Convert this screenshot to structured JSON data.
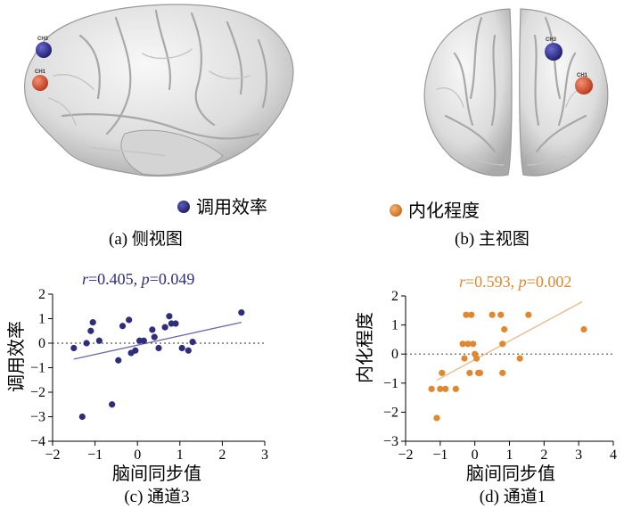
{
  "colors": {
    "efficiency": "#2e2e7a",
    "internalization": "#e0882f",
    "ch_blue": "#2b2a8a",
    "ch_red": "#d8502e"
  },
  "legend": {
    "efficiency": "调用效率",
    "internalization": "内化程度"
  },
  "brains": {
    "side": {
      "caption": "(a) 侧视图",
      "channels": [
        "CH3",
        "CH1"
      ]
    },
    "front": {
      "caption": "(b) 主视图",
      "channels": [
        "CH3",
        "CH1"
      ]
    }
  },
  "chart_data": [
    {
      "type": "scatter",
      "caption": "(c) 通道3",
      "stat_r_label": "r",
      "stat_r_value": "=0.405, ",
      "stat_p_label": "p",
      "stat_p_value": "=0.049",
      "xlabel": "脑间同步值",
      "ylabel": "调用效率",
      "xlim": [
        -2,
        3
      ],
      "ylim": [
        -4,
        2
      ],
      "xticks": [
        -2,
        -1,
        0,
        1,
        2,
        3
      ],
      "yticks": [
        -4,
        -3,
        -2,
        -1,
        0,
        1,
        2
      ],
      "color": "#2e2e7a",
      "trend": {
        "x": [
          -1.5,
          2.45
        ],
        "y": [
          -0.65,
          0.85
        ]
      },
      "points": [
        {
          "x": -1.5,
          "y": -0.2
        },
        {
          "x": -1.3,
          "y": -3.0
        },
        {
          "x": -1.2,
          "y": 0.0
        },
        {
          "x": -1.1,
          "y": 0.5
        },
        {
          "x": -1.05,
          "y": 0.85
        },
        {
          "x": -0.9,
          "y": 0.1
        },
        {
          "x": -0.6,
          "y": -2.5
        },
        {
          "x": -0.45,
          "y": -0.7
        },
        {
          "x": -0.35,
          "y": 0.7
        },
        {
          "x": -0.2,
          "y": 0.95
        },
        {
          "x": -0.15,
          "y": -0.4
        },
        {
          "x": -0.05,
          "y": -0.3
        },
        {
          "x": 0.05,
          "y": 0.1
        },
        {
          "x": 0.15,
          "y": 0.1
        },
        {
          "x": 0.35,
          "y": 0.55
        },
        {
          "x": 0.4,
          "y": 0.25
        },
        {
          "x": 0.5,
          "y": -0.2
        },
        {
          "x": 0.65,
          "y": 0.65
        },
        {
          "x": 0.75,
          "y": 1.1
        },
        {
          "x": 0.8,
          "y": 0.8
        },
        {
          "x": 0.9,
          "y": 0.8
        },
        {
          "x": 1.05,
          "y": -0.2
        },
        {
          "x": 1.2,
          "y": -0.3
        },
        {
          "x": 1.3,
          "y": 0.05
        },
        {
          "x": 2.45,
          "y": 1.25
        }
      ]
    },
    {
      "type": "scatter",
      "caption": "(d) 通道1",
      "stat_r_label": "r",
      "stat_r_value": "=0.593, ",
      "stat_p_label": "p",
      "stat_p_value": "=0.002",
      "xlabel": "脑间同步值",
      "ylabel": "内化程度",
      "xlim": [
        -2,
        4
      ],
      "ylim": [
        -3,
        2
      ],
      "xticks": [
        -2,
        -1,
        0,
        1,
        2,
        3,
        4
      ],
      "yticks": [
        -3,
        -2,
        -1,
        0,
        1,
        2
      ],
      "color": "#e0882f",
      "trend": {
        "x": [
          -1.1,
          3.1
        ],
        "y": [
          -0.9,
          1.8
        ]
      },
      "points": [
        {
          "x": -1.25,
          "y": -1.2
        },
        {
          "x": -1.1,
          "y": -2.2
        },
        {
          "x": -1.0,
          "y": -1.2
        },
        {
          "x": -0.95,
          "y": -0.65
        },
        {
          "x": -0.85,
          "y": -1.2
        },
        {
          "x": -0.55,
          "y": -1.2
        },
        {
          "x": -0.35,
          "y": 0.35
        },
        {
          "x": -0.3,
          "y": -0.15
        },
        {
          "x": -0.25,
          "y": 1.35
        },
        {
          "x": -0.2,
          "y": 0.35
        },
        {
          "x": -0.15,
          "y": -0.65
        },
        {
          "x": -0.1,
          "y": 1.35
        },
        {
          "x": -0.05,
          "y": 0.35
        },
        {
          "x": 0.0,
          "y": 0.0
        },
        {
          "x": 0.05,
          "y": -0.15
        },
        {
          "x": 0.1,
          "y": -0.65
        },
        {
          "x": 0.5,
          "y": 1.35
        },
        {
          "x": 0.75,
          "y": 1.35
        },
        {
          "x": 0.8,
          "y": 0.35
        },
        {
          "x": 0.8,
          "y": -0.65
        },
        {
          "x": 0.85,
          "y": 0.85
        },
        {
          "x": 1.3,
          "y": -0.15
        },
        {
          "x": 1.55,
          "y": 1.35
        },
        {
          "x": 3.15,
          "y": 0.85
        },
        {
          "x": 0.15,
          "y": -0.65
        }
      ]
    }
  ]
}
